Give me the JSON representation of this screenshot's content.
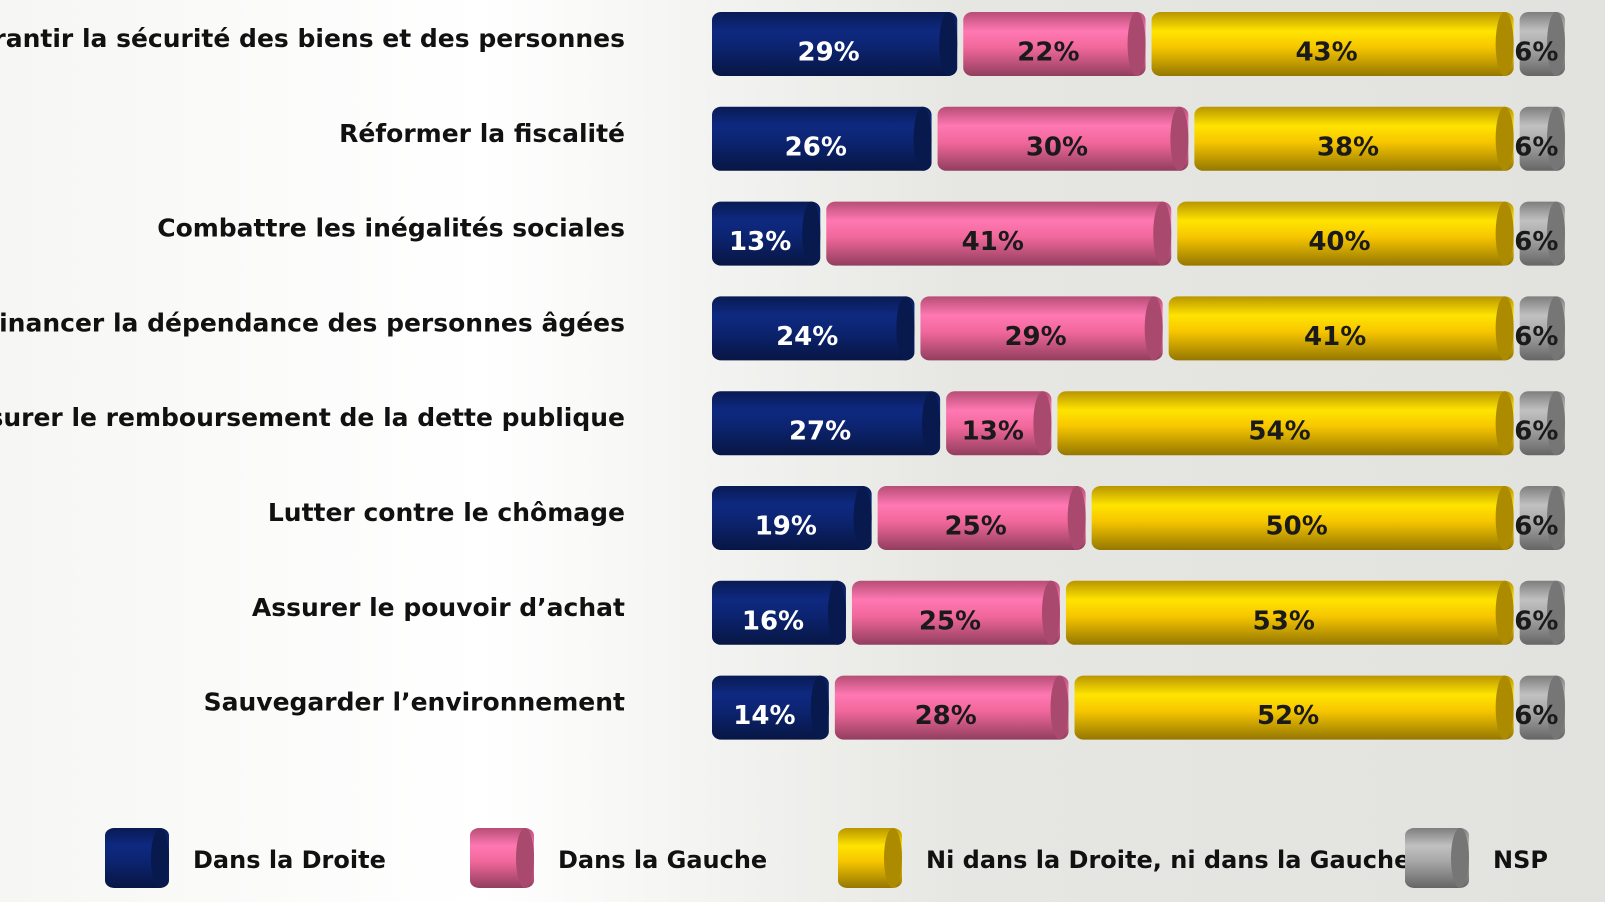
{
  "chart_data": {
    "type": "stacked-bar-horizontal",
    "categories": [
      "Garantir la sécurité des biens et des personnes",
      "Réformer la fiscalité",
      "Combattre les inégalités sociales",
      "Financer la dépendance des personnes âgées",
      "Assurer le remboursement de la dette publique",
      "Lutter contre le chômage",
      "Assurer le pouvoir d’achat",
      "Sauvegarder l’environnement"
    ],
    "xlim": [
      0,
      100
    ],
    "series": [
      {
        "name": "Dans la Droite",
        "color": "#0c2470",
        "label_color": "#ffffff",
        "values": [
          29,
          26,
          13,
          24,
          27,
          19,
          16,
          14
        ],
        "value_labels": [
          "29%",
          "26%",
          "13%",
          "24%",
          "27%",
          "19%",
          "16%",
          "14%"
        ]
      },
      {
        "name": "Dans la Gauche",
        "color": "#f2689c",
        "label_color": "#1a1a1a",
        "values": [
          22,
          30,
          41,
          29,
          13,
          25,
          25,
          28
        ],
        "value_labels": [
          "22%",
          "30%",
          "41%",
          "29%",
          "13%",
          "25%",
          "25%",
          "28%"
        ]
      },
      {
        "name": "Ni dans la Droite, ni dans la Gauche",
        "color": "#f7c600",
        "label_color": "#1a1a1a",
        "values": [
          43,
          38,
          40,
          41,
          54,
          50,
          53,
          52
        ],
        "value_labels": [
          "43%",
          "38%",
          "40%",
          "41%",
          "54%",
          "50%",
          "53%",
          "52%"
        ]
      },
      {
        "name": "NSP",
        "color": "#a8a8a8",
        "label_color": "#1a1a1a",
        "values": [
          6,
          6,
          6,
          6,
          6,
          6,
          6,
          6
        ],
        "value_labels": [
          "6%",
          "6%",
          "6%",
          "6%",
          "6%",
          "6%",
          "6%",
          "6%"
        ]
      }
    ]
  }
}
